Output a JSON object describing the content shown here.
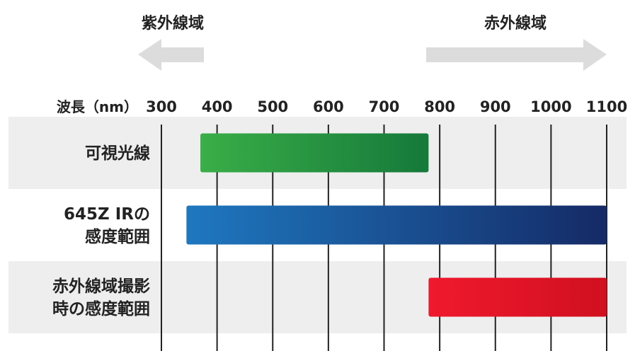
{
  "regions": {
    "uv_label": "紫外線域",
    "ir_label": "赤外線域",
    "arrow_color": "#dcdcdc"
  },
  "chart_data": {
    "type": "bar",
    "orientation": "horizontal-range",
    "xlabel": "波長（nm）",
    "xticks": [
      300,
      400,
      500,
      600,
      700,
      800,
      900,
      1000,
      1100
    ],
    "xlim": [
      300,
      1100
    ],
    "grid": true,
    "rows": [
      {
        "label_lines": [
          "可視光線"
        ],
        "start": 370,
        "end": 780,
        "color_start": "#3aae48",
        "color_end": "#15793a",
        "band_color": "#eeeeee"
      },
      {
        "label_lines": [
          "645Z IRの",
          "感度範囲"
        ],
        "start": 345,
        "end": 1100,
        "color_start": "#1e78c0",
        "color_end": "#152a66",
        "band_color": "#ffffff"
      },
      {
        "label_lines": [
          "赤外線域撮影",
          "時の感度範囲"
        ],
        "start": 780,
        "end": 1100,
        "color_start": "#f0192e",
        "color_end": "#d0101f",
        "band_color": "#eeeeee"
      }
    ]
  }
}
